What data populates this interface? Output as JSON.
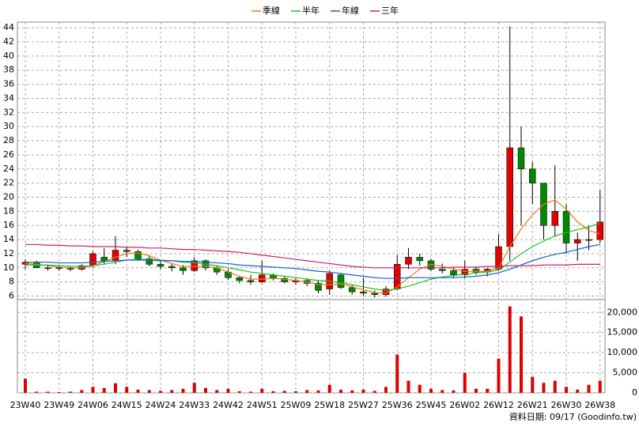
{
  "chart_data": {
    "type": "candlestick",
    "x": [
      "23W40",
      null,
      null,
      "23W49",
      null,
      null,
      "24W06",
      null,
      null,
      "24W15",
      null,
      null,
      "24W24",
      null,
      null,
      "24W33",
      null,
      null,
      "24W42",
      null,
      null,
      "24W51",
      null,
      null,
      "25W09",
      null,
      null,
      "25W18",
      null,
      null,
      "25W27",
      null,
      null,
      "25W36",
      null,
      null,
      "25W45",
      null,
      null,
      "26W02",
      null,
      null,
      "26W12",
      null,
      null,
      "26W21",
      null,
      null,
      "26W30",
      null,
      null,
      "26W38"
    ],
    "open": [
      10.5,
      10.8,
      10,
      10,
      9.9,
      9.8,
      10.3,
      11.5,
      11,
      12.5,
      12.3,
      11.3,
      10.5,
      10.2,
      10,
      9.6,
      11,
      10,
      9.4,
      8.6,
      8.2,
      8,
      9,
      8.5,
      8,
      8.2,
      7.8,
      7,
      9,
      7.2,
      6.6,
      6.4,
      6.2,
      7,
      10.5,
      11.5,
      11,
      9.8,
      9.6,
      9,
      9.8,
      9.4,
      9.8,
      13,
      27,
      24,
      22,
      16,
      18,
      13.5,
      14,
      14
    ],
    "high": [
      11.2,
      11,
      10.4,
      10.3,
      10.2,
      10.5,
      12.3,
      12.8,
      14.5,
      13,
      12.6,
      11.8,
      11,
      10.6,
      10.4,
      11.5,
      11.2,
      10.3,
      9.8,
      8.8,
      9,
      11,
      9.2,
      8.8,
      8.6,
      8.5,
      8.2,
      9.6,
      9.2,
      7.6,
      8.6,
      6.8,
      7.4,
      11.8,
      12.8,
      12,
      11.3,
      10.6,
      10,
      11,
      10.2,
      10,
      14.8,
      44.2,
      30,
      25,
      22,
      24.5,
      19,
      15,
      16,
      21
    ],
    "low": [
      9.8,
      10,
      9.6,
      9.6,
      9.5,
      9.6,
      10,
      10.5,
      10.5,
      11.5,
      11,
      10.2,
      9.8,
      9.5,
      9,
      9.4,
      9.6,
      9,
      8.3,
      7.8,
      7.6,
      7.8,
      8.2,
      7.8,
      7.6,
      7.4,
      6.4,
      6.2,
      7,
      6.2,
      6,
      5.8,
      5.9,
      6.8,
      9.8,
      10.3,
      9.5,
      9.2,
      8.6,
      8.5,
      9,
      8.8,
      9.5,
      11,
      16,
      19,
      14,
      14.5,
      12,
      11,
      12.5,
      13.5
    ],
    "close": [
      10.8,
      10,
      10,
      9.9,
      9.8,
      10.3,
      12,
      11,
      12.5,
      12.3,
      11.3,
      10.5,
      10.2,
      10,
      9.6,
      11,
      10,
      9.4,
      8.6,
      8.2,
      8,
      9,
      8.5,
      8,
      8.2,
      7.8,
      6.8,
      9.2,
      7.2,
      6.6,
      6.4,
      6.2,
      7,
      10.5,
      11.5,
      11,
      9.8,
      9.6,
      9,
      9.8,
      9.4,
      9.8,
      13,
      27,
      24,
      22,
      16,
      18,
      13.5,
      14,
      14,
      16.5
    ],
    "up_color": "#e00000",
    "down_color": "#008800",
    "ylim": [
      5.5,
      44.8
    ],
    "yticks": [
      6,
      8,
      10,
      12,
      14,
      16,
      18,
      20,
      22,
      24,
      26,
      28,
      30,
      32,
      34,
      36,
      38,
      40,
      42,
      44
    ],
    "grid": true,
    "series": [
      {
        "name": "季線",
        "color": "#f07820",
        "values": [
          10.6,
          10.5,
          10.3,
          10.1,
          10,
          10,
          10.3,
          10.9,
          11.5,
          12,
          12.1,
          11.7,
          11.1,
          10.6,
          10.2,
          10.2,
          10.2,
          10,
          9.4,
          8.8,
          8.4,
          8.4,
          8.5,
          8.4,
          8.2,
          8,
          7.6,
          7.6,
          7.7,
          7.3,
          6.9,
          6.5,
          6.4,
          7.3,
          8.6,
          9.8,
          10.5,
          10.2,
          9.8,
          9.5,
          9.5,
          9.5,
          10,
          13,
          15.5,
          17.5,
          19,
          19.6,
          18.3,
          16.5,
          15.3,
          14.8
        ]
      },
      {
        "name": "半年",
        "color": "#20c020",
        "values": [
          10.4,
          10.4,
          10.4,
          10.3,
          10.2,
          10.2,
          10.3,
          10.5,
          10.8,
          11.1,
          11.2,
          11.2,
          11.1,
          11,
          10.8,
          10.7,
          10.5,
          10.3,
          10,
          9.7,
          9.4,
          9.2,
          9,
          8.8,
          8.6,
          8.4,
          8.2,
          8.1,
          7.9,
          7.6,
          7.3,
          7,
          6.8,
          7,
          7.4,
          7.9,
          8.4,
          8.7,
          8.9,
          9.1,
          9.3,
          9.4,
          9.7,
          10.8,
          12,
          13,
          13.8,
          14.5,
          15,
          15.4,
          15.8,
          16.3
        ]
      },
      {
        "name": "年線",
        "color": "#1060d0",
        "values": [
          10.8,
          10.8,
          10.8,
          10.7,
          10.7,
          10.7,
          10.8,
          10.9,
          11,
          11.1,
          11.1,
          11.1,
          11,
          11,
          10.9,
          10.9,
          10.8,
          10.7,
          10.6,
          10.4,
          10.3,
          10.2,
          10.1,
          10,
          9.9,
          9.7,
          9.5,
          9.4,
          9.2,
          9,
          8.8,
          8.6,
          8.5,
          8.5,
          8.6,
          8.6,
          8.6,
          8.6,
          8.6,
          8.7,
          8.8,
          9,
          9.3,
          9.8,
          10.4,
          11,
          11.5,
          11.9,
          12.2,
          12.6,
          13,
          13.3
        ]
      },
      {
        "name": "三年",
        "color": "#d0206a",
        "values": [
          13.3,
          13.3,
          13.2,
          13.2,
          13.1,
          13.1,
          13,
          13,
          13,
          12.9,
          12.9,
          12.8,
          12.8,
          12.7,
          12.6,
          12.6,
          12.5,
          12.4,
          12.3,
          12.2,
          12,
          11.8,
          11.6,
          11.4,
          11.2,
          11,
          10.8,
          10.6,
          10.4,
          10.2,
          10.1,
          10,
          10,
          10,
          10,
          10,
          10,
          10,
          10.1,
          10.1,
          10.1,
          10.2,
          10.2,
          10.3,
          10.3,
          10.3,
          10.4,
          10.4,
          10.4,
          10.5,
          10.5,
          10.5
        ]
      }
    ],
    "volume": {
      "color": "#e00000",
      "values": [
        3500,
        300,
        300,
        200,
        300,
        700,
        1500,
        1200,
        2400,
        1500,
        800,
        700,
        500,
        700,
        1000,
        2500,
        1200,
        700,
        1000,
        400,
        300,
        1000,
        400,
        500,
        400,
        700,
        600,
        2000,
        800,
        600,
        800,
        500,
        1500,
        9500,
        3000,
        2000,
        1000,
        700,
        600,
        5000,
        1000,
        1000,
        8500,
        21500,
        19000,
        4000,
        2500,
        3000,
        1500,
        800,
        2000,
        3000
      ],
      "ylim": [
        0,
        23000
      ],
      "yticks": [
        0,
        {
          "value": 5000,
          "label": "5,000"
        },
        {
          "value": 10000,
          "label": "10,000"
        },
        {
          "value": 15000,
          "label": "15,000"
        },
        {
          "value": 20000,
          "label": "20,000"
        }
      ]
    },
    "source": "資料日期: 09/17  (Goodinfo.tw)"
  }
}
